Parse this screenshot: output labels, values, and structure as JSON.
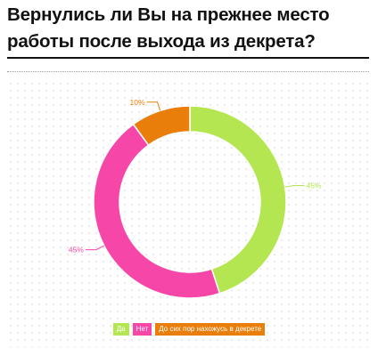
{
  "title": "Вернулись ли Вы на прежнее место работы после выхода из декрета?",
  "chart_data": {
    "type": "pie",
    "variant": "donut",
    "categories": [
      "Да",
      "Нет",
      "До сих пор нахожусь в декрете"
    ],
    "values": [
      45,
      45,
      10
    ],
    "value_labels": [
      "45%",
      "45%",
      "10%"
    ],
    "colors": [
      "#b3e650",
      "#f646a8",
      "#e97e0a"
    ],
    "legend_position": "bottom-center",
    "grid": false
  }
}
